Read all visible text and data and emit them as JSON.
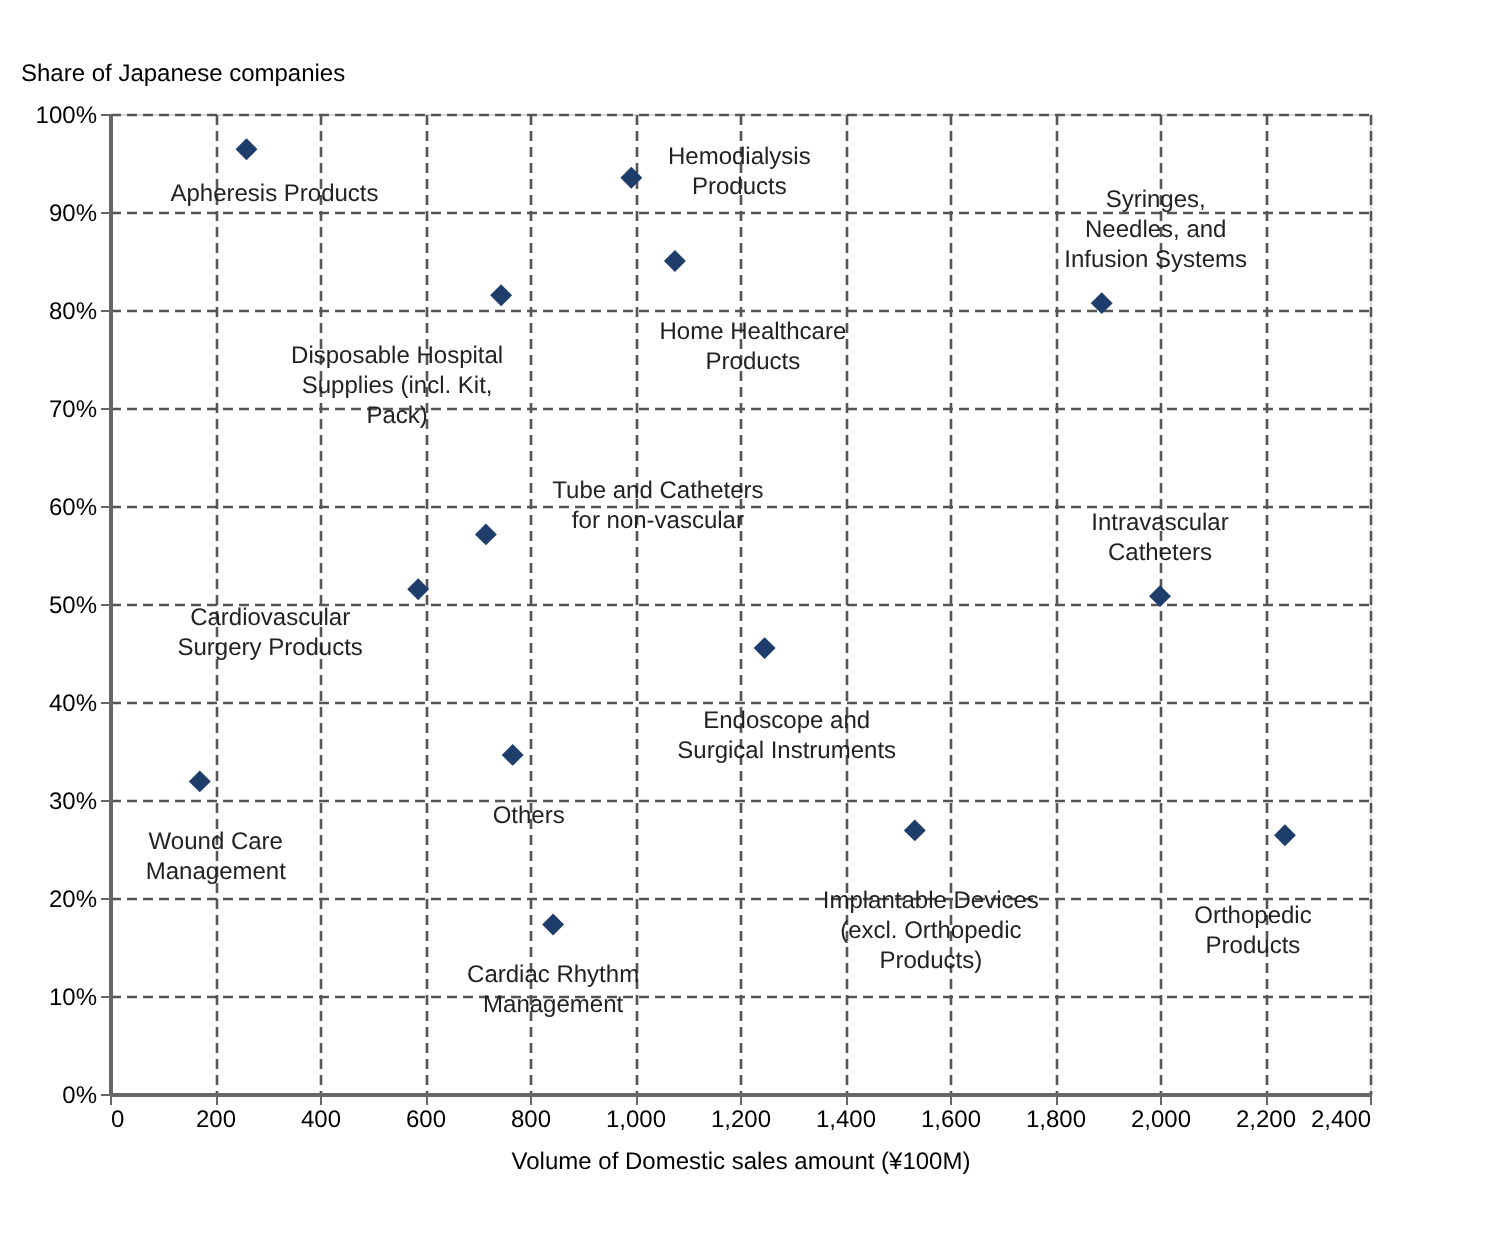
{
  "chart_data": {
    "type": "scatter",
    "ylabel": "Share of Japanese companies",
    "xlabel": "Volume of Domestic sales amount (¥100M)",
    "x": [
      260,
      993,
      1076,
      745,
      1889,
      716,
      587,
      2000,
      1247,
      767,
      171,
      1533,
      2238,
      844
    ],
    "series": [
      {
        "color": "#1f3d6b",
        "values": [
          96.4,
          93.5,
          85.0,
          81.5,
          80.7,
          57.1,
          51.5,
          50.8,
          45.5,
          34.6,
          31.9,
          26.9,
          26.4,
          17.3
        ]
      }
    ],
    "marker": "diamond",
    "annotations": [
      {
        "text": "Apheresis Products",
        "x": 260,
        "y": 96.4
      },
      {
        "text": "Hemodialysis\nProducts",
        "x": 993,
        "y": 93.5
      },
      {
        "text": "Home Healthcare\nProducts",
        "x": 1076,
        "y": 85.0
      },
      {
        "text": "Disposable Hospital\nSupplies (incl. Kit,\nPack)",
        "x": 745,
        "y": 81.5
      },
      {
        "text": "Syringes,\nNeedles, and\nInfusion Systems",
        "x": 1889,
        "y": 80.7
      },
      {
        "text": "Tube and Catheters\nfor non-vascular",
        "x": 716,
        "y": 57.1
      },
      {
        "text": "Cardiovascular\nSurgery Products",
        "x": 587,
        "y": 51.5
      },
      {
        "text": "Intravascular\nCatheters",
        "x": 2000,
        "y": 50.8
      },
      {
        "text": "Endoscope and\nSurgical Instruments",
        "x": 1247,
        "y": 45.5
      },
      {
        "text": "Others",
        "x": 767,
        "y": 34.6
      },
      {
        "text": "Wound Care\nManagement",
        "x": 171,
        "y": 31.9
      },
      {
        "text": "Implantable Devices\n(excl. Orthopedic\nProducts)",
        "x": 1533,
        "y": 26.9
      },
      {
        "text": "Orthopedic\nProducts",
        "x": 2238,
        "y": 26.4
      },
      {
        "text": "Cardiac Rhythm\nManagement",
        "x": 844,
        "y": 17.3
      }
    ],
    "xlim": [
      0,
      2400
    ],
    "xticks": [
      0,
      200,
      400,
      600,
      800,
      {
        "value": 1000,
        "label": "1,000"
      },
      {
        "value": 1200,
        "label": "1,200"
      },
      {
        "value": 1400,
        "label": "1,400"
      },
      {
        "value": 1600,
        "label": "1,600"
      },
      {
        "value": 1800,
        "label": "1,800"
      },
      {
        "value": 2000,
        "label": "2,000"
      },
      {
        "value": 2200,
        "label": "2,200"
      },
      {
        "value": 2400,
        "label": "2,400"
      }
    ],
    "ylim": [
      0,
      100
    ],
    "yticks": [
      {
        "value": 0,
        "label": "0%"
      },
      {
        "value": 10,
        "label": "10%"
      },
      {
        "value": 20,
        "label": "20%"
      },
      {
        "value": 30,
        "label": "30%"
      },
      {
        "value": 40,
        "label": "40%"
      },
      {
        "value": 50,
        "label": "50%"
      },
      {
        "value": 60,
        "label": "60%"
      },
      {
        "value": 70,
        "label": "70%"
      },
      {
        "value": 80,
        "label": "80%"
      },
      {
        "value": 90,
        "label": "90%"
      },
      {
        "value": 100,
        "label": "100%"
      }
    ],
    "grid": true
  }
}
